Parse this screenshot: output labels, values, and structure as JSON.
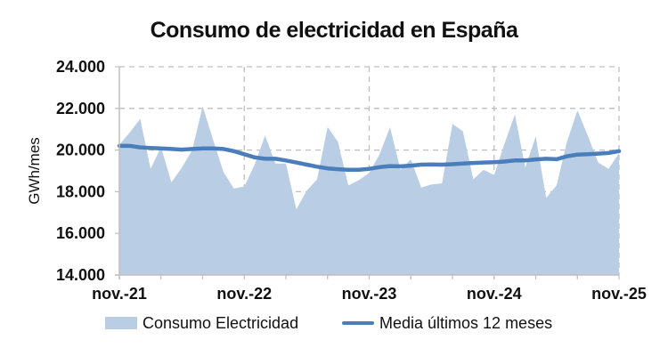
{
  "chart_data": {
    "type": "area",
    "title": "Consumo de electricidad en España",
    "xlabel": "",
    "ylabel": "GWh/mes",
    "ylim": [
      14000,
      24000
    ],
    "yticks": [
      14000,
      16000,
      18000,
      20000,
      22000,
      24000
    ],
    "ytick_labels": [
      "14.000",
      "16.000",
      "18.000",
      "20.000",
      "22.000",
      "24.000"
    ],
    "xtick_labels": [
      "nov.-21",
      "nov.-22",
      "nov.-23",
      "nov.-24",
      "nov.-25"
    ],
    "grid": true,
    "legend_position": "bottom",
    "colors": {
      "area": "#b9cde5",
      "line": "#4a7ebb",
      "grid": "#bfbfbf"
    },
    "x": [
      "nov.-21",
      "dic.-21",
      "ene.-22",
      "feb.-22",
      "mar.-22",
      "abr.-22",
      "may.-22",
      "jun.-22",
      "jul.-22",
      "ago.-22",
      "sep.-22",
      "oct.-22",
      "nov.-22",
      "dic.-22",
      "ene.-23",
      "feb.-23",
      "mar.-23",
      "abr.-23",
      "may.-23",
      "jun.-23",
      "jul.-23",
      "ago.-23",
      "sep.-23",
      "oct.-23",
      "nov.-23",
      "dic.-23",
      "ene.-24",
      "feb.-24",
      "mar.-24",
      "abr.-24",
      "may.-24",
      "jun.-24",
      "jul.-24",
      "ago.-24",
      "sep.-24",
      "oct.-24",
      "nov.-24",
      "dic.-24",
      "ene.-25",
      "feb.-25",
      "mar.-25",
      "abr.-25",
      "may.-25",
      "jun.-25",
      "jul.-25",
      "ago.-25",
      "sep.-25",
      "oct.-25",
      "nov.-25"
    ],
    "series": [
      {
        "name": "Consumo Electricidad",
        "type": "area",
        "values": [
          20250,
          20850,
          21500,
          19100,
          20150,
          18450,
          19150,
          20000,
          22100,
          20500,
          18950,
          18150,
          18250,
          19300,
          20700,
          19350,
          19350,
          17150,
          18050,
          18600,
          21100,
          20400,
          18300,
          18550,
          18900,
          19800,
          21100,
          19050,
          19550,
          18200,
          18350,
          18400,
          21250,
          20900,
          18600,
          19050,
          18800,
          20300,
          21700,
          19150,
          20650,
          17700,
          18300,
          20400,
          21900,
          20700,
          19400,
          19100,
          19850
        ]
      },
      {
        "name": "Media últimos 12 meses",
        "type": "line",
        "values": [
          20200,
          20200,
          20130,
          20100,
          20080,
          20050,
          20020,
          20050,
          20080,
          20080,
          20050,
          19950,
          19800,
          19650,
          19580,
          19580,
          19500,
          19400,
          19300,
          19200,
          19120,
          19080,
          19050,
          19050,
          19100,
          19180,
          19230,
          19220,
          19250,
          19300,
          19310,
          19300,
          19320,
          19350,
          19380,
          19400,
          19420,
          19450,
          19500,
          19500,
          19550,
          19580,
          19560,
          19700,
          19780,
          19800,
          19830,
          19860,
          19950
        ]
      }
    ]
  },
  "legend": {
    "area_label": "Consumo Electricidad",
    "line_label": "Media últimos 12 meses"
  }
}
